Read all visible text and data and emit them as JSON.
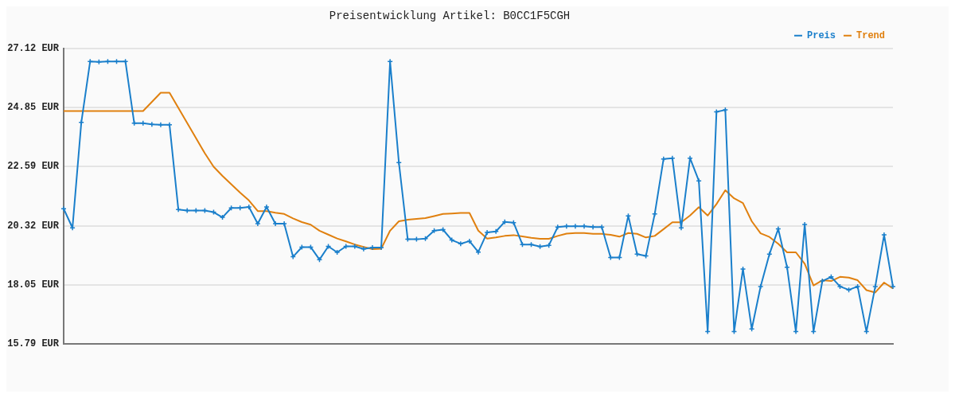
{
  "chart_data": {
    "type": "line",
    "title": "Preisentwicklung Artikel: B0CC1F5CGH",
    "categories": [
      null,
      null,
      null,
      null,
      null,
      null,
      null,
      null,
      null,
      null,
      null,
      null,
      null,
      null,
      null,
      null,
      null,
      null,
      null,
      null,
      null,
      null,
      null,
      null,
      null,
      null,
      null,
      null,
      null,
      null,
      null,
      null,
      null,
      null,
      null,
      null,
      null,
      null,
      null,
      null,
      null,
      null,
      null,
      null,
      null,
      null,
      null,
      null,
      null,
      null,
      null,
      null,
      null,
      null,
      null,
      null,
      null,
      null,
      null,
      null,
      null,
      null,
      null,
      null,
      null,
      null,
      null,
      null,
      null,
      null,
      null,
      null,
      null,
      null,
      null,
      null,
      null,
      null,
      null,
      null,
      null,
      null,
      null,
      null,
      null,
      null,
      null,
      null,
      null,
      null,
      null,
      null,
      null,
      null,
      null
    ],
    "series": [
      {
        "name": "Preis",
        "color": "#1a7fcb",
        "marker": "cross",
        "values": [
          20.97,
          20.24,
          24.28,
          26.62,
          26.6,
          26.62,
          26.62,
          26.62,
          24.25,
          24.25,
          24.21,
          24.19,
          24.19,
          20.94,
          20.9,
          20.9,
          20.9,
          20.84,
          20.64,
          21.0,
          21.0,
          21.04,
          20.4,
          21.04,
          20.4,
          20.4,
          19.13,
          19.5,
          19.5,
          19.02,
          19.53,
          19.3,
          19.53,
          19.53,
          19.43,
          19.48,
          19.48,
          26.62,
          22.74,
          19.8,
          19.8,
          19.83,
          20.13,
          20.17,
          19.77,
          19.63,
          19.73,
          19.31,
          20.06,
          20.1,
          20.47,
          20.44,
          19.6,
          19.6,
          19.52,
          19.57,
          20.27,
          20.3,
          20.3,
          20.3,
          20.27,
          20.27,
          19.1,
          19.1,
          20.7,
          19.23,
          19.16,
          20.77,
          22.88,
          22.91,
          20.24,
          22.91,
          22.04,
          16.26,
          24.69,
          24.76,
          16.26,
          18.66,
          16.36,
          17.99,
          19.23,
          20.2,
          18.73,
          16.26,
          20.37,
          16.26,
          18.2,
          18.36,
          17.99,
          17.86,
          17.99,
          16.26,
          17.99,
          19.97,
          17.99
        ]
      },
      {
        "name": "Trend",
        "color": "#e0800f",
        "marker": "none",
        "values": [
          24.72,
          24.72,
          24.72,
          24.72,
          24.72,
          24.72,
          24.72,
          24.72,
          24.72,
          24.72,
          25.07,
          25.42,
          25.42,
          24.84,
          24.26,
          23.68,
          23.1,
          22.58,
          22.23,
          21.91,
          21.59,
          21.29,
          20.88,
          20.88,
          20.82,
          20.77,
          20.6,
          20.46,
          20.36,
          20.13,
          19.98,
          19.83,
          19.72,
          19.6,
          19.51,
          19.42,
          19.44,
          20.13,
          20.49,
          20.55,
          20.58,
          20.61,
          20.69,
          20.77,
          20.79,
          20.81,
          20.81,
          20.13,
          19.83,
          19.87,
          19.93,
          19.96,
          19.91,
          19.86,
          19.82,
          19.82,
          19.93,
          20.02,
          20.04,
          20.04,
          20.01,
          20.01,
          19.97,
          19.9,
          20.04,
          20.01,
          19.87,
          19.93,
          20.19,
          20.45,
          20.45,
          20.71,
          21.03,
          20.71,
          21.15,
          21.68,
          21.37,
          21.19,
          20.49,
          20.03,
          19.89,
          19.63,
          19.3,
          19.3,
          18.86,
          18.03,
          18.23,
          18.2,
          18.36,
          18.33,
          18.23,
          17.85,
          17.76,
          18.14,
          17.91
        ]
      }
    ],
    "ylim": [
      15.79,
      27.12
    ],
    "yticks": [
      {
        "value": 15.79,
        "label": "15.79 EUR"
      },
      {
        "value": 18.05,
        "label": "18.05 EUR"
      },
      {
        "value": 20.32,
        "label": "20.32 EUR"
      },
      {
        "value": 22.59,
        "label": "22.59 EUR"
      },
      {
        "value": 24.85,
        "label": "24.85 EUR"
      },
      {
        "value": 27.12,
        "label": "27.12 EUR"
      }
    ],
    "grid": "y",
    "legend": "top right",
    "tick_labels": "y",
    "line_style": "solid"
  }
}
